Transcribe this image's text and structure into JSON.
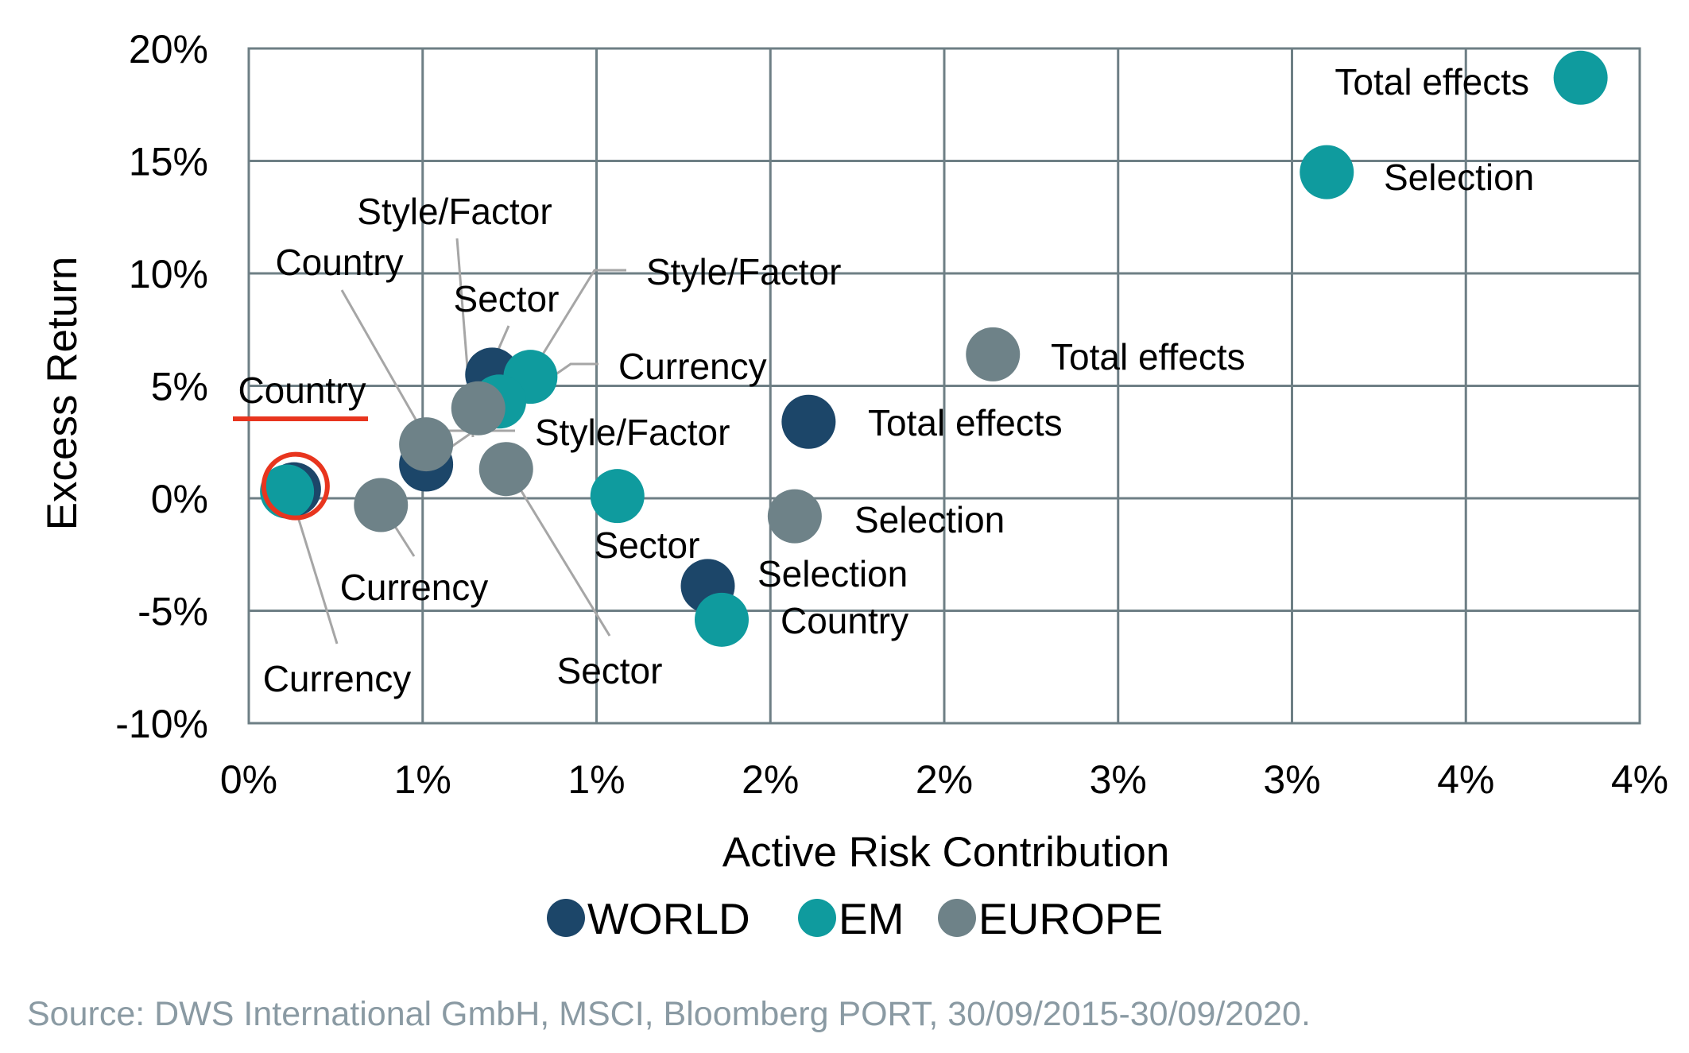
{
  "chart_data": {
    "type": "scatter",
    "title": "",
    "xlabel": "Active Risk Contribution",
    "ylabel": "Excess Return",
    "xlim": [
      0,
      4
    ],
    "ylim": [
      -10,
      20
    ],
    "x_ticks": [
      "0%",
      "1%",
      "1%",
      "2%",
      "2%",
      "3%",
      "3%",
      "4%",
      "4%"
    ],
    "y_ticks": [
      "20%",
      "15%",
      "10%",
      "5%",
      "0%",
      "-5%",
      "-10%"
    ],
    "grid": true,
    "legend": {
      "position": "bottom-center"
    },
    "series": [
      {
        "name": "WORLD",
        "color": "#1c4669",
        "points": [
          {
            "label": "Country",
            "x": 0.13,
            "y": 0.4
          },
          {
            "label": "Style/Factor",
            "x": 0.51,
            "y": 1.5
          },
          {
            "label": "Sector",
            "x": 0.7,
            "y": 5.5
          },
          {
            "label": "Total effects",
            "x": 1.61,
            "y": 3.4
          },
          {
            "label": "Selection",
            "x": 1.32,
            "y": -3.9
          }
        ]
      },
      {
        "name": "EM",
        "color": "#0f9b9e",
        "points": [
          {
            "label": "Total effects",
            "x": 3.83,
            "y": 18.7
          },
          {
            "label": "Selection",
            "x": 3.1,
            "y": 14.5
          },
          {
            "label": "Style/Factor",
            "x": 0.81,
            "y": 5.4
          },
          {
            "label": "Currency",
            "x": 0.72,
            "y": 4.3
          },
          {
            "label": "Sector",
            "x": 1.06,
            "y": 0.1
          },
          {
            "label": "Country",
            "x": 1.36,
            "y": -5.4
          },
          {
            "label": "Currency",
            "x": 0.11,
            "y": 0.3
          }
        ]
      },
      {
        "name": "EUROPE",
        "color": "#6e8288",
        "points": [
          {
            "label": "Total effects",
            "x": 2.14,
            "y": 6.4
          },
          {
            "label": "Selection",
            "x": 1.57,
            "y": -0.8
          },
          {
            "label": "Country",
            "x": 0.51,
            "y": 2.4
          },
          {
            "label": "Style/Factor",
            "x": 0.66,
            "y": 4.0
          },
          {
            "label": "Sector",
            "x": 0.74,
            "y": 1.3
          },
          {
            "label": "Currency",
            "x": 0.38,
            "y": -0.3
          }
        ]
      }
    ],
    "highlight": {
      "series": "WORLD",
      "label": "Country",
      "color": "#e8351e"
    }
  },
  "source": "Source: DWS International GmbH, MSCI, Bloomberg PORT, 30/09/2015-30/09/2020."
}
